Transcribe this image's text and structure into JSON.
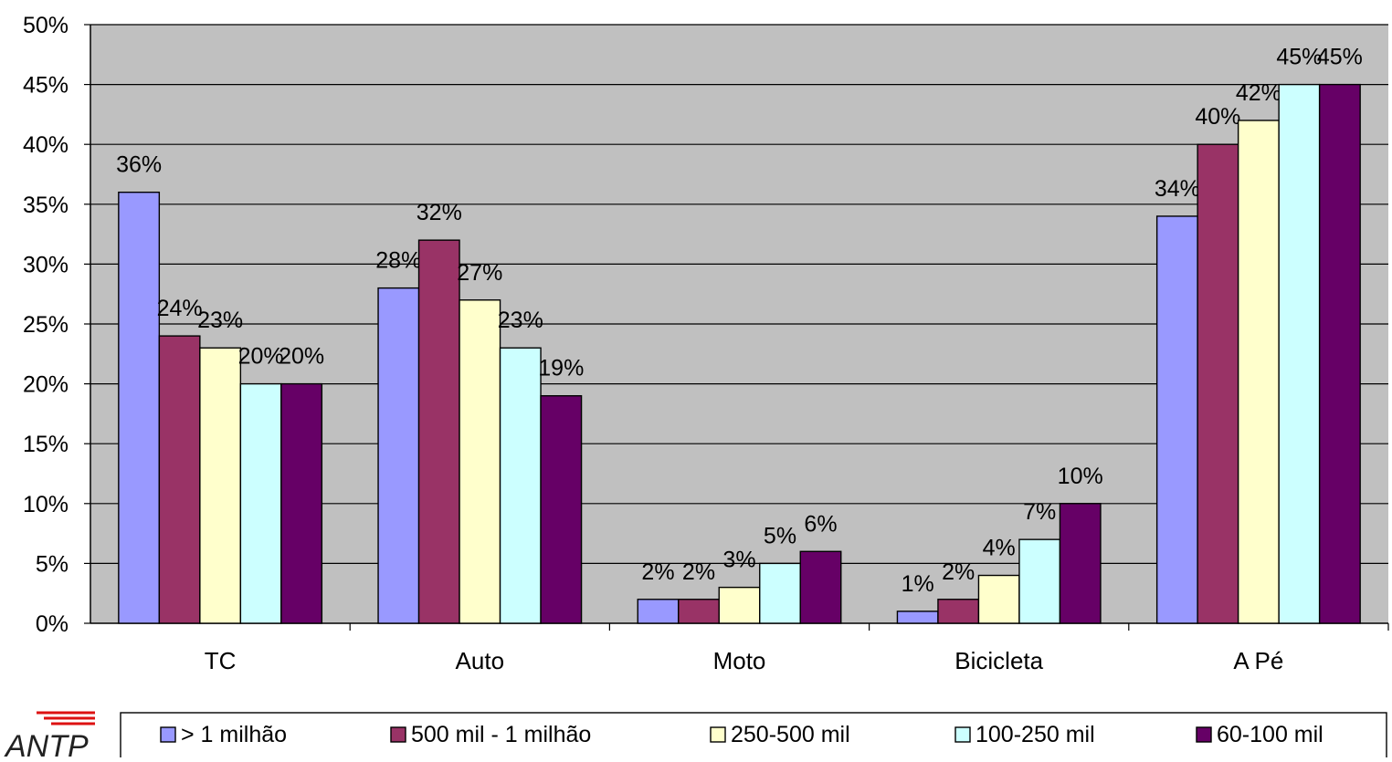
{
  "chart_data": {
    "type": "bar",
    "categories": [
      "TC",
      "Auto",
      "Moto",
      "Bicicleta",
      "A Pé"
    ],
    "series": [
      {
        "name": "> 1 milhão",
        "color": "#9999ff",
        "values": [
          36,
          28,
          2,
          1,
          34
        ],
        "labels": [
          "36%",
          "28%",
          "2%",
          "1%",
          "34%"
        ]
      },
      {
        "name": "500 mil - 1 milhão",
        "color": "#993366",
        "values": [
          24,
          32,
          2,
          2,
          40
        ],
        "labels": [
          "24%",
          "32%",
          "2%",
          "2%",
          "40%"
        ]
      },
      {
        "name": "250-500 mil",
        "color": "#ffffcc",
        "values": [
          23,
          27,
          3,
          4,
          42
        ],
        "labels": [
          "23%",
          "27%",
          "3%",
          "4%",
          "42%"
        ]
      },
      {
        "name": "100-250 mil",
        "color": "#ccffff",
        "values": [
          20,
          23,
          5,
          7,
          45
        ],
        "labels": [
          "20%",
          "23%",
          "5%",
          "7%",
          "45%"
        ]
      },
      {
        "name": "60-100 mil",
        "color": "#660066",
        "values": [
          20,
          19,
          6,
          10,
          45
        ],
        "labels": [
          "20%",
          "19%",
          "6%",
          "10%",
          "45%"
        ]
      }
    ],
    "ylim": [
      0,
      50
    ],
    "yticks": [
      "0%",
      "5%",
      "10%",
      "15%",
      "20%",
      "25%",
      "30%",
      "35%",
      "40%",
      "45%",
      "50%"
    ],
    "grid": true,
    "plot_background": "#c0c0c0",
    "legend_position": "bottom"
  },
  "logo": {
    "text": "ANTP"
  }
}
